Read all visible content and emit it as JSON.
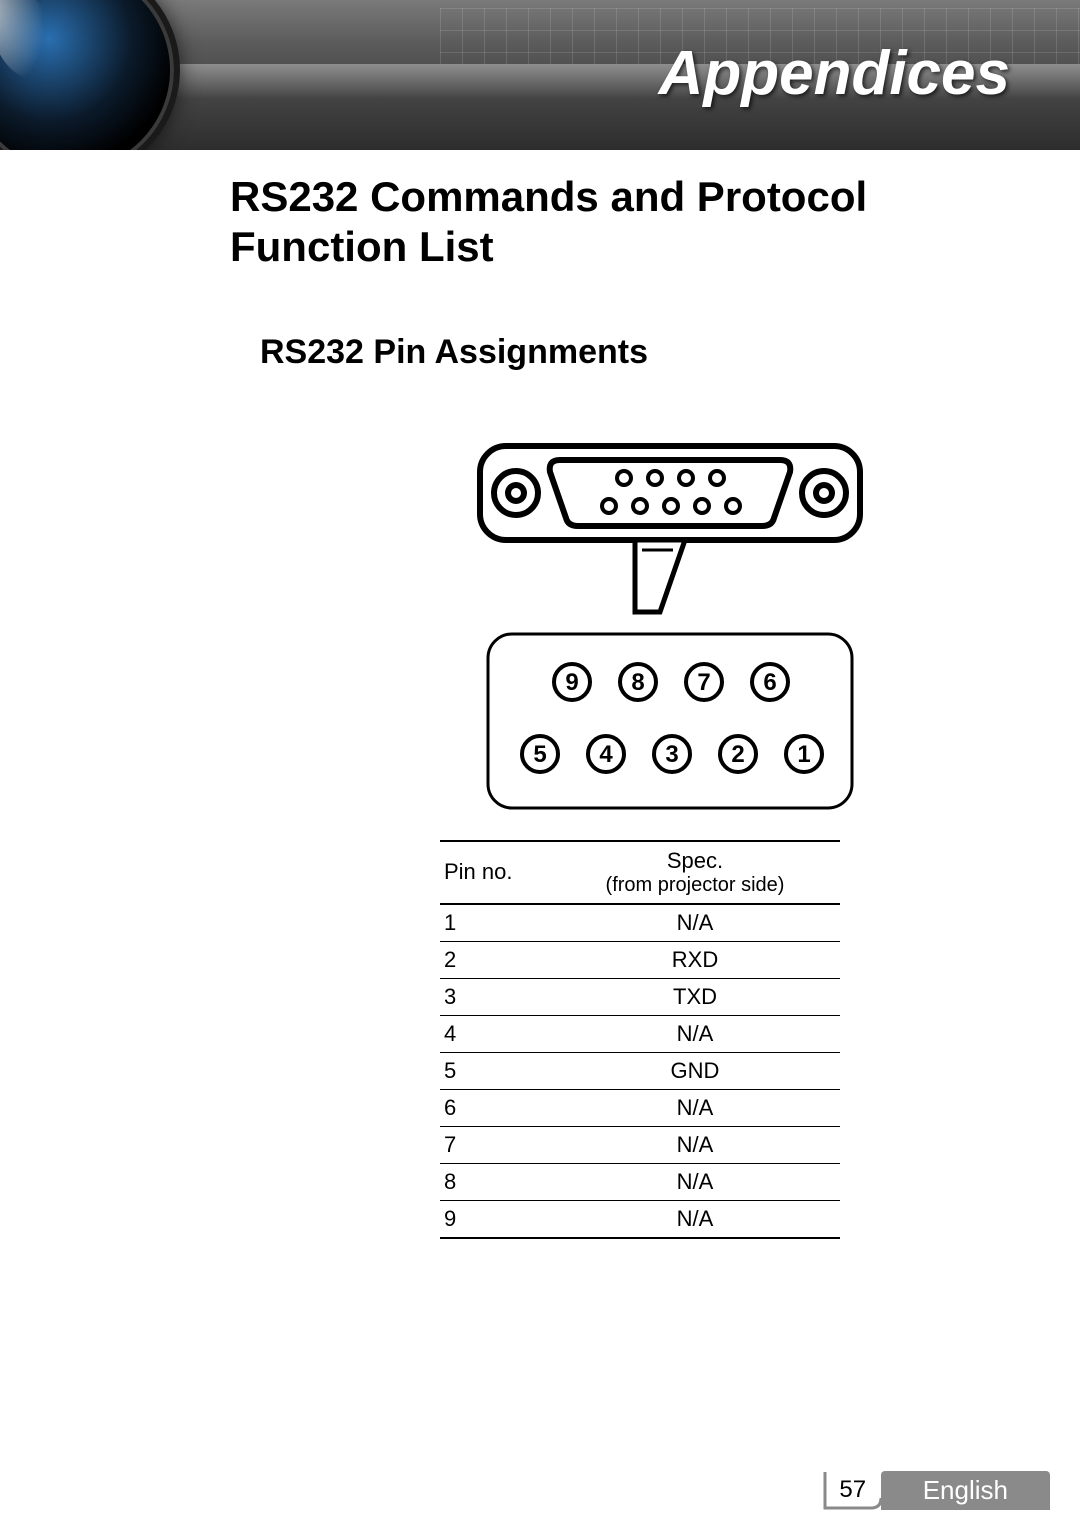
{
  "header": {
    "title": "Appendices"
  },
  "titles": {
    "main": "RS232 Commands and Protocol Function List",
    "sub": "RS232 Pin Assignments"
  },
  "connector_diagram": {
    "type": "diagram",
    "top_row_pins": [
      "9",
      "8",
      "7",
      "6"
    ],
    "bottom_row_pins": [
      "5",
      "4",
      "3",
      "2",
      "1"
    ],
    "colors": {
      "stroke": "#000000",
      "fill": "#ffffff",
      "pin_circle_stroke_width": 3
    }
  },
  "pin_table": {
    "type": "table",
    "columns": [
      "Pin no.",
      "Spec.\n(from projector side)"
    ],
    "header_line1": "Spec.",
    "header_line2": "(from projector side)",
    "header_col0": "Pin no.",
    "rows": [
      [
        "1",
        "N/A"
      ],
      [
        "2",
        "RXD"
      ],
      [
        "3",
        "TXD"
      ],
      [
        "4",
        "N/A"
      ],
      [
        "5",
        "GND"
      ],
      [
        "6",
        "N/A"
      ],
      [
        "7",
        "N/A"
      ],
      [
        "8",
        "N/A"
      ],
      [
        "9",
        "N/A"
      ]
    ],
    "colors": {
      "border": "#000000",
      "text": "#000000",
      "background": "#ffffff"
    },
    "font_size": 22
  },
  "footer": {
    "page": "57",
    "language": "English"
  }
}
